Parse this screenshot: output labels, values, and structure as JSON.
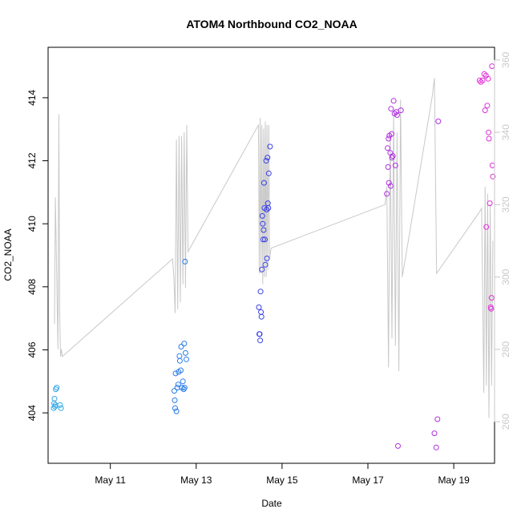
{
  "chart_data": {
    "type": "scatter",
    "title": "ATOM4 Northbound CO2_NOAA",
    "xlabel": "Date",
    "ylabel": "CO2_NOAA",
    "xlim": [
      9.55,
      19.95
    ],
    "ylim": [
      402.4,
      415.6
    ],
    "y2lim": [
      248.5,
      363.5
    ],
    "x_ticks": [
      {
        "value": 11,
        "label": "May 11"
      },
      {
        "value": 13,
        "label": "May 13"
      },
      {
        "value": 15,
        "label": "May 15"
      },
      {
        "value": 17,
        "label": "May 17"
      },
      {
        "value": 19,
        "label": "May 19"
      }
    ],
    "y_ticks": [
      404,
      406,
      408,
      410,
      412,
      414
    ],
    "y2_ticks": [
      260,
      280,
      300,
      320,
      340,
      360
    ],
    "colors": {
      "axis": "#000000",
      "secondary_line": "#c8c8c8",
      "secondary_axis": "#c8c8c8"
    },
    "series": [
      {
        "name": "CO2_NOAA",
        "axis": "left",
        "points": [
          {
            "x": 9.68,
            "y": 404.15,
            "color": "#30a8e8"
          },
          {
            "x": 9.69,
            "y": 404.3,
            "color": "#30a8e8"
          },
          {
            "x": 9.7,
            "y": 404.45,
            "color": "#30a8e8"
          },
          {
            "x": 9.71,
            "y": 404.2,
            "color": "#30a8e8"
          },
          {
            "x": 9.72,
            "y": 404.25,
            "color": "#30a8e8"
          },
          {
            "x": 9.73,
            "y": 404.75,
            "color": "#30a8e8"
          },
          {
            "x": 9.75,
            "y": 404.8,
            "color": "#30a8e8"
          },
          {
            "x": 9.83,
            "y": 404.25,
            "color": "#30a8e8"
          },
          {
            "x": 9.85,
            "y": 404.15,
            "color": "#30a8e8"
          },
          {
            "x": 12.49,
            "y": 404.7,
            "color": "#2a7ce8"
          },
          {
            "x": 12.5,
            "y": 404.4,
            "color": "#2a7ce8"
          },
          {
            "x": 12.51,
            "y": 404.15,
            "color": "#2a7ce8"
          },
          {
            "x": 12.52,
            "y": 405.25,
            "color": "#2a7ce8"
          },
          {
            "x": 12.54,
            "y": 404.05,
            "color": "#2a7ce8"
          },
          {
            "x": 12.56,
            "y": 404.8,
            "color": "#2a7ce8"
          },
          {
            "x": 12.58,
            "y": 404.9,
            "color": "#2a7ce8"
          },
          {
            "x": 12.59,
            "y": 405.3,
            "color": "#2a7ce8"
          },
          {
            "x": 12.61,
            "y": 405.8,
            "color": "#2a7ce8"
          },
          {
            "x": 12.62,
            "y": 405.65,
            "color": "#2a7ce8"
          },
          {
            "x": 12.64,
            "y": 405.35,
            "color": "#2a7ce8"
          },
          {
            "x": 12.65,
            "y": 406.1,
            "color": "#2a7ce8"
          },
          {
            "x": 12.67,
            "y": 404.8,
            "color": "#2a7ce8"
          },
          {
            "x": 12.69,
            "y": 405.0,
            "color": "#2a7ce8"
          },
          {
            "x": 12.71,
            "y": 404.75,
            "color": "#2a7ce8"
          },
          {
            "x": 12.72,
            "y": 406.2,
            "color": "#2a7ce8"
          },
          {
            "x": 12.73,
            "y": 404.8,
            "color": "#2a7ce8"
          },
          {
            "x": 12.74,
            "y": 408.8,
            "color": "#2a7ce8"
          },
          {
            "x": 12.75,
            "y": 405.9,
            "color": "#2a7ce8"
          },
          {
            "x": 12.77,
            "y": 405.7,
            "color": "#2a7ce8"
          },
          {
            "x": 14.46,
            "y": 407.35,
            "color": "#3a40e8"
          },
          {
            "x": 14.47,
            "y": 406.5,
            "color": "#3a40e8"
          },
          {
            "x": 14.48,
            "y": 406.5,
            "color": "#3a40e8"
          },
          {
            "x": 14.49,
            "y": 406.3,
            "color": "#3a40e8"
          },
          {
            "x": 14.5,
            "y": 407.85,
            "color": "#3a40e8"
          },
          {
            "x": 14.51,
            "y": 407.2,
            "color": "#3a40e8"
          },
          {
            "x": 14.52,
            "y": 407.05,
            "color": "#3a40e8"
          },
          {
            "x": 14.53,
            "y": 408.55,
            "color": "#3a40e8"
          },
          {
            "x": 14.54,
            "y": 410.25,
            "color": "#3a40e8"
          },
          {
            "x": 14.55,
            "y": 410.0,
            "color": "#3a40e8"
          },
          {
            "x": 14.56,
            "y": 409.5,
            "color": "#3a40e8"
          },
          {
            "x": 14.57,
            "y": 409.8,
            "color": "#3a40e8"
          },
          {
            "x": 14.58,
            "y": 411.3,
            "color": "#3a40e8"
          },
          {
            "x": 14.59,
            "y": 410.5,
            "color": "#3a40e8"
          },
          {
            "x": 14.6,
            "y": 409.5,
            "color": "#3a40e8"
          },
          {
            "x": 14.61,
            "y": 408.7,
            "color": "#3a40e8"
          },
          {
            "x": 14.63,
            "y": 412.0,
            "color": "#3a40e8"
          },
          {
            "x": 14.64,
            "y": 410.45,
            "color": "#3a40e8"
          },
          {
            "x": 14.65,
            "y": 408.9,
            "color": "#3a40e8"
          },
          {
            "x": 14.66,
            "y": 412.1,
            "color": "#3a40e8"
          },
          {
            "x": 14.67,
            "y": 410.65,
            "color": "#3a40e8"
          },
          {
            "x": 14.68,
            "y": 410.5,
            "color": "#3a40e8"
          },
          {
            "x": 14.69,
            "y": 411.6,
            "color": "#3a40e8"
          },
          {
            "x": 14.72,
            "y": 412.45,
            "color": "#3a40e8"
          },
          {
            "x": 17.44,
            "y": 410.95,
            "color": "#b030e0"
          },
          {
            "x": 17.46,
            "y": 412.4,
            "color": "#b030e0"
          },
          {
            "x": 17.47,
            "y": 411.8,
            "color": "#b030e0"
          },
          {
            "x": 17.48,
            "y": 412.7,
            "color": "#b030e0"
          },
          {
            "x": 17.49,
            "y": 411.3,
            "color": "#b030e0"
          },
          {
            "x": 17.5,
            "y": 412.8,
            "color": "#b030e0"
          },
          {
            "x": 17.52,
            "y": 412.25,
            "color": "#b030e0"
          },
          {
            "x": 17.53,
            "y": 411.2,
            "color": "#b030e0"
          },
          {
            "x": 17.54,
            "y": 413.65,
            "color": "#b030e0"
          },
          {
            "x": 17.55,
            "y": 412.85,
            "color": "#b030e0"
          },
          {
            "x": 17.56,
            "y": 412.1,
            "color": "#b030e0"
          },
          {
            "x": 17.58,
            "y": 412.15,
            "color": "#b030e0"
          },
          {
            "x": 17.6,
            "y": 413.9,
            "color": "#b030e0"
          },
          {
            "x": 17.62,
            "y": 413.5,
            "color": "#b030e0"
          },
          {
            "x": 17.64,
            "y": 411.85,
            "color": "#b030e0"
          },
          {
            "x": 17.66,
            "y": 413.55,
            "color": "#b030e0"
          },
          {
            "x": 17.68,
            "y": 413.45,
            "color": "#b030e0"
          },
          {
            "x": 17.7,
            "y": 402.95,
            "color": "#b030e0"
          },
          {
            "x": 17.77,
            "y": 413.6,
            "color": "#b030e0"
          },
          {
            "x": 18.55,
            "y": 403.35,
            "color": "#b030e0"
          },
          {
            "x": 18.59,
            "y": 402.9,
            "color": "#b030e0"
          },
          {
            "x": 18.62,
            "y": 403.8,
            "color": "#b030e0"
          },
          {
            "x": 18.64,
            "y": 413.25,
            "color": "#b030e0"
          },
          {
            "x": 19.6,
            "y": 414.55,
            "color": "#e030d8"
          },
          {
            "x": 19.63,
            "y": 414.5,
            "color": "#e030d8"
          },
          {
            "x": 19.67,
            "y": 414.55,
            "color": "#e030d8"
          },
          {
            "x": 19.71,
            "y": 414.75,
            "color": "#e030d8"
          },
          {
            "x": 19.73,
            "y": 413.6,
            "color": "#e030d8"
          },
          {
            "x": 19.75,
            "y": 414.7,
            "color": "#e030d8"
          },
          {
            "x": 19.76,
            "y": 409.9,
            "color": "#e030d8"
          },
          {
            "x": 19.78,
            "y": 413.75,
            "color": "#e030d8"
          },
          {
            "x": 19.8,
            "y": 414.6,
            "color": "#e030d8"
          },
          {
            "x": 19.81,
            "y": 412.9,
            "color": "#e030d8"
          },
          {
            "x": 19.82,
            "y": 412.7,
            "color": "#e030d8"
          },
          {
            "x": 19.84,
            "y": 410.65,
            "color": "#e030d8"
          },
          {
            "x": 19.86,
            "y": 407.35,
            "color": "#e030d8"
          },
          {
            "x": 19.87,
            "y": 407.3,
            "color": "#e030d8"
          },
          {
            "x": 19.88,
            "y": 407.65,
            "color": "#e030d8"
          },
          {
            "x": 19.89,
            "y": 415.0,
            "color": "#e030d8"
          },
          {
            "x": 19.9,
            "y": 411.85,
            "color": "#e030d8"
          },
          {
            "x": 19.91,
            "y": 411.5,
            "color": "#e030d8"
          }
        ]
      },
      {
        "name": "secondary",
        "axis": "right",
        "type": "line",
        "x": [
          9.7,
          9.72,
          9.78,
          9.8,
          9.82,
          9.84,
          9.86,
          9.88,
          12.45,
          12.48,
          12.51,
          12.54,
          12.57,
          12.6,
          12.63,
          12.66,
          12.69,
          12.72,
          12.75,
          12.78,
          12.81,
          14.45,
          14.47,
          14.49,
          14.51,
          14.53,
          14.55,
          14.57,
          14.59,
          14.61,
          14.63,
          14.65,
          14.67,
          14.69,
          14.71,
          14.73,
          14.75,
          17.4,
          17.44,
          17.48,
          17.52,
          17.56,
          17.6,
          17.64,
          17.68,
          17.72,
          17.76,
          17.8,
          18.5,
          18.55,
          18.6,
          19.6,
          19.65,
          19.7,
          19.73,
          19.76,
          19.79,
          19.82,
          19.85,
          19.88,
          19.91
        ],
        "y": [
          287,
          322,
          280,
          345,
          290,
          278,
          280,
          278,
          305,
          300,
          290,
          338,
          291,
          339,
          293,
          339,
          298,
          340,
          297,
          342,
          307,
          342,
          301,
          344,
          301,
          342,
          298,
          341,
          300,
          343,
          300,
          342,
          302,
          342,
          305,
          307,
          308,
          320,
          325,
          275,
          340,
          283,
          345,
          281,
          340,
          274,
          349,
          300,
          350,
          355,
          301,
          318,
          319,
          268,
          325,
          270,
          323,
          261,
          320,
          270,
          310
        ]
      }
    ]
  }
}
